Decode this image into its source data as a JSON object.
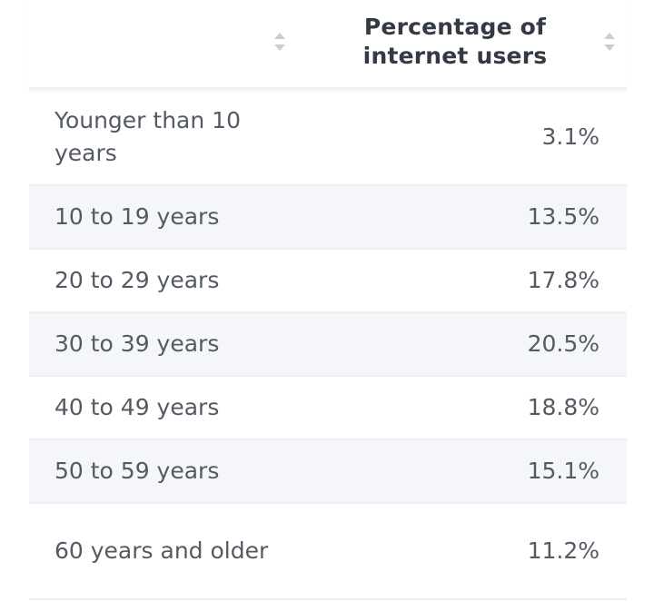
{
  "chart_data": {
    "type": "table",
    "columns": [
      "",
      "Percentage of internet users"
    ],
    "categories": [
      "Younger than 10 years",
      "10 to 19 years",
      "20 to 29 years",
      "30 to 39 years",
      "40 to 49 years",
      "50 to 59 years",
      "60 years and older"
    ],
    "values": [
      3.1,
      13.5,
      17.8,
      20.5,
      18.8,
      15.1,
      11.2
    ],
    "value_labels": [
      "3.1%",
      "13.5%",
      "17.8%",
      "20.5%",
      "18.8%",
      "15.1%",
      "11.2%"
    ]
  },
  "table": {
    "header": {
      "col1_label": "",
      "col2_label": "Percentage of internet users"
    },
    "icons": {
      "sort": "sort-icon"
    },
    "colors": {
      "row_shade": "#f4f6f9",
      "text": "#545a63",
      "header_text": "#333a44",
      "sort_icon": "#c9ced6"
    }
  }
}
